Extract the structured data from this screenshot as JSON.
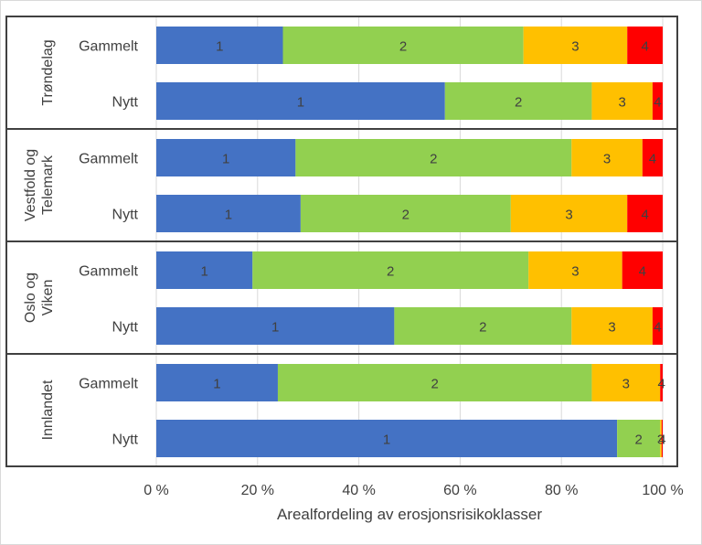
{
  "chart_data": {
    "type": "bar",
    "orientation": "horizontal",
    "stacked": true,
    "percent": true,
    "xlabel": "Arealfordeling av erosjonsrisikoklasser",
    "xlim": [
      0,
      100
    ],
    "x_ticks": [
      "0 %",
      "20 %",
      "40 %",
      "60 %",
      "80 %",
      "100 %"
    ],
    "grid": true,
    "legend": "none",
    "segment_labels": [
      "1",
      "2",
      "3",
      "4"
    ],
    "colors": [
      "#4472C4",
      "#92D050",
      "#FFC000",
      "#FF0000"
    ],
    "groups": [
      {
        "name": "Trøndelag",
        "bars": [
          {
            "label": "Gammelt",
            "values": [
              25,
              47.5,
              20.5,
              7
            ]
          },
          {
            "label": "Nytt",
            "values": [
              57,
              29,
              12,
              2
            ]
          }
        ]
      },
      {
        "name": "Vestfold og Telemark",
        "bars": [
          {
            "label": "Gammelt",
            "values": [
              27.5,
              54.5,
              14,
              4
            ]
          },
          {
            "label": "Nytt",
            "values": [
              28.5,
              41.5,
              23,
              7
            ]
          }
        ]
      },
      {
        "name": "Oslo og Viken",
        "bars": [
          {
            "label": "Gammelt",
            "values": [
              19,
              54.5,
              18.5,
              8
            ]
          },
          {
            "label": "Nytt",
            "values": [
              47,
              35,
              16,
              2
            ]
          }
        ]
      },
      {
        "name": "Innlandet",
        "bars": [
          {
            "label": "Gammelt",
            "values": [
              24,
              62,
              13.5,
              0.5
            ]
          },
          {
            "label": "Nytt",
            "values": [
              91,
              8.5,
              0.3,
              0.2
            ]
          }
        ]
      }
    ]
  }
}
